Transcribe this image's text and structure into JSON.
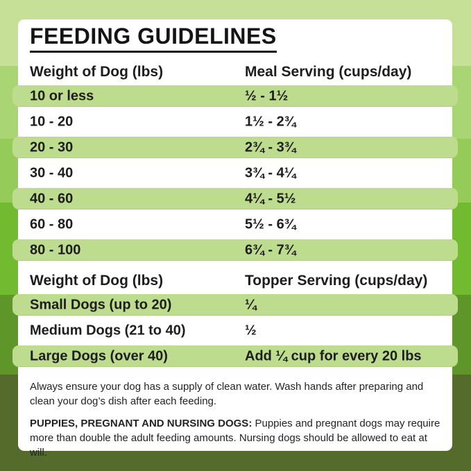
{
  "page": {
    "title": "FEEDING GUIDELINES"
  },
  "colors": {
    "card_bg": "#ffffff",
    "row_green": "#bedc8e",
    "title_text": "#141414",
    "body_text": "#1d1d1d",
    "bg_bands": [
      "#c7e098",
      "#aad575",
      "#95cb58",
      "#72ba30",
      "#5e9629",
      "#556b2b"
    ]
  },
  "meal_table": {
    "col1_header": "Weight of Dog (lbs)",
    "col2_header": "Meal Serving (cups/day)",
    "rows": [
      {
        "weight": "10 or less",
        "serving": "½ - 1½"
      },
      {
        "weight": "10 - 20",
        "serving": "1½ - 2¾"
      },
      {
        "weight": "20 - 30",
        "serving": "2¾ - 3¾"
      },
      {
        "weight": "30 - 40",
        "serving": "3¾ - 4¼"
      },
      {
        "weight": "40 - 60",
        "serving": "4¼ - 5½"
      },
      {
        "weight": "60 - 80",
        "serving": "5½ - 6¾"
      },
      {
        "weight": "80 - 100",
        "serving": "6¾ - 7¾"
      }
    ]
  },
  "topper_table": {
    "col1_header": "Weight of Dog (lbs)",
    "col2_header": "Topper Serving (cups/day)",
    "rows": [
      {
        "weight": "Small Dogs (up to 20)",
        "serving": "¼"
      },
      {
        "weight": "Medium Dogs (21 to 40)",
        "serving": "½"
      },
      {
        "weight": "Large Dogs (over 40)",
        "serving": "Add ¼ cup for every 20 lbs"
      }
    ]
  },
  "notes": {
    "water": "Always ensure your dog has a supply of clean water. Wash hands after preparing and clean your dog’s dish after each feeding.",
    "special_label": "PUPPIES, PREGNANT AND NURSING DOGS:",
    "special_text": " Puppies and pregnant dogs may require more than double the adult feeding amounts. Nursing dogs should be allowed to eat at will."
  }
}
